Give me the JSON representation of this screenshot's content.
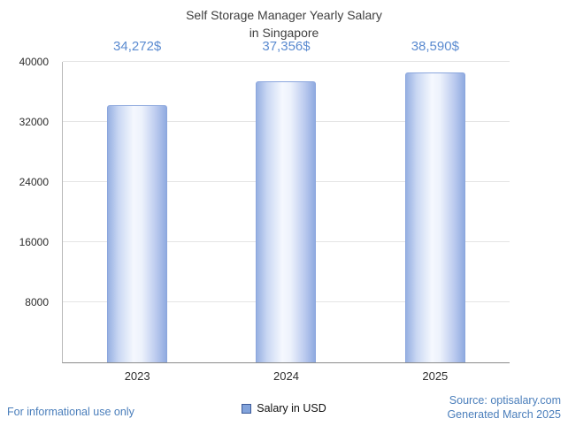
{
  "title": {
    "line1": "Self Storage Manager Yearly Salary",
    "line2": "in Singapore"
  },
  "chart_data": {
    "type": "bar",
    "title": "Self Storage Manager Yearly Salary in Singapore",
    "categories": [
      "2023",
      "2024",
      "2025"
    ],
    "values": [
      34272,
      37356,
      38590
    ],
    "value_labels": [
      "34,272$",
      "37,356$",
      "38,590$"
    ],
    "xlabel": "",
    "ylabel": "",
    "ylim": [
      0,
      40000
    ],
    "yticks": [
      8000,
      16000,
      24000,
      32000,
      40000
    ],
    "grid": true,
    "legend": "Salary in USD",
    "legend_position": "bottom-center"
  },
  "footer": {
    "disclaimer": "For informational use only",
    "source": "Source: optisalary.com",
    "generated": "Generated March 2025"
  },
  "colors": {
    "value_label_blue": "#5b8bd0",
    "link_blue": "#4a7ebb",
    "bar_edge": "#90abe0",
    "bar_center": "#f5f8fe",
    "gridline": "#e4e4e4",
    "title_text": "#3f3f3f"
  }
}
